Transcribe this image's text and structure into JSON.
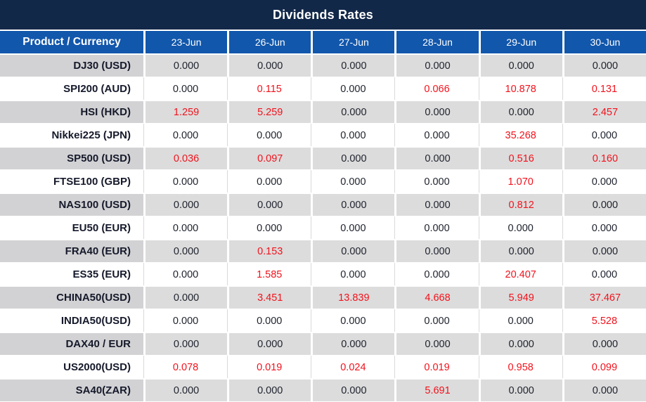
{
  "title": "Dividends Rates",
  "colors": {
    "title_bar_bg": "#122849",
    "header_bg": "#1157ac",
    "header_text": "#ffffff",
    "row_gray_product": "#d2d2d4",
    "row_gray_value": "#dcdcdc",
    "row_white": "#ffffff",
    "white_row_divider": "#d9d9d9",
    "product_text": "#15192a",
    "value_text": "#20242f",
    "value_red": "#f2121c"
  },
  "table": {
    "product_header": "Product / Currency",
    "date_headers": [
      "23-Jun",
      "26-Jun",
      "27-Jun",
      "28-Jun",
      "29-Jun",
      "30-Jun"
    ],
    "rows": [
      {
        "product": "DJ30 (USD)",
        "values": [
          "0.000",
          "0.000",
          "0.000",
          "0.000",
          "0.000",
          "0.000"
        ],
        "red": [
          false,
          false,
          false,
          false,
          false,
          false
        ]
      },
      {
        "product": "SPI200 (AUD)",
        "values": [
          "0.000",
          "0.115",
          "0.000",
          "0.066",
          "10.878",
          "0.131"
        ],
        "red": [
          false,
          true,
          false,
          true,
          true,
          true
        ]
      },
      {
        "product": "HSI (HKD)",
        "values": [
          "1.259",
          "5.259",
          "0.000",
          "0.000",
          "0.000",
          "2.457"
        ],
        "red": [
          true,
          true,
          false,
          false,
          false,
          true
        ]
      },
      {
        "product": "Nikkei225 (JPN)",
        "values": [
          "0.000",
          "0.000",
          "0.000",
          "0.000",
          "35.268",
          "0.000"
        ],
        "red": [
          false,
          false,
          false,
          false,
          true,
          false
        ]
      },
      {
        "product": "SP500 (USD)",
        "values": [
          "0.036",
          "0.097",
          "0.000",
          "0.000",
          "0.516",
          "0.160"
        ],
        "red": [
          true,
          true,
          false,
          false,
          true,
          true
        ]
      },
      {
        "product": "FTSE100 (GBP)",
        "values": [
          "0.000",
          "0.000",
          "0.000",
          "0.000",
          "1.070",
          "0.000"
        ],
        "red": [
          false,
          false,
          false,
          false,
          true,
          false
        ]
      },
      {
        "product": "NAS100 (USD)",
        "values": [
          "0.000",
          "0.000",
          "0.000",
          "0.000",
          "0.812",
          "0.000"
        ],
        "red": [
          false,
          false,
          false,
          false,
          true,
          false
        ]
      },
      {
        "product": "EU50 (EUR)",
        "values": [
          "0.000",
          "0.000",
          "0.000",
          "0.000",
          "0.000",
          "0.000"
        ],
        "red": [
          false,
          false,
          false,
          false,
          false,
          false
        ]
      },
      {
        "product": "FRA40 (EUR)",
        "values": [
          "0.000",
          "0.153",
          "0.000",
          "0.000",
          "0.000",
          "0.000"
        ],
        "red": [
          false,
          true,
          false,
          false,
          false,
          false
        ]
      },
      {
        "product": "ES35 (EUR)",
        "values": [
          "0.000",
          "1.585",
          "0.000",
          "0.000",
          "20.407",
          "0.000"
        ],
        "red": [
          false,
          true,
          false,
          false,
          true,
          false
        ]
      },
      {
        "product": "CHINA50(USD)",
        "values": [
          "0.000",
          "3.451",
          "13.839",
          "4.668",
          "5.949",
          "37.467"
        ],
        "red": [
          false,
          true,
          true,
          true,
          true,
          true
        ]
      },
      {
        "product": "INDIA50(USD)",
        "values": [
          "0.000",
          "0.000",
          "0.000",
          "0.000",
          "0.000",
          "5.528"
        ],
        "red": [
          false,
          false,
          false,
          false,
          false,
          true
        ]
      },
      {
        "product": "DAX40 / EUR",
        "values": [
          "0.000",
          "0.000",
          "0.000",
          "0.000",
          "0.000",
          "0.000"
        ],
        "red": [
          false,
          false,
          false,
          false,
          false,
          false
        ]
      },
      {
        "product": "US2000(USD)",
        "values": [
          "0.078",
          "0.019",
          "0.024",
          "0.019",
          "0.958",
          "0.099"
        ],
        "red": [
          true,
          true,
          true,
          true,
          true,
          true
        ]
      },
      {
        "product": "SA40(ZAR)",
        "values": [
          "0.000",
          "0.000",
          "0.000",
          "5.691",
          "0.000",
          "0.000"
        ],
        "red": [
          false,
          false,
          false,
          true,
          false,
          false
        ]
      }
    ]
  }
}
